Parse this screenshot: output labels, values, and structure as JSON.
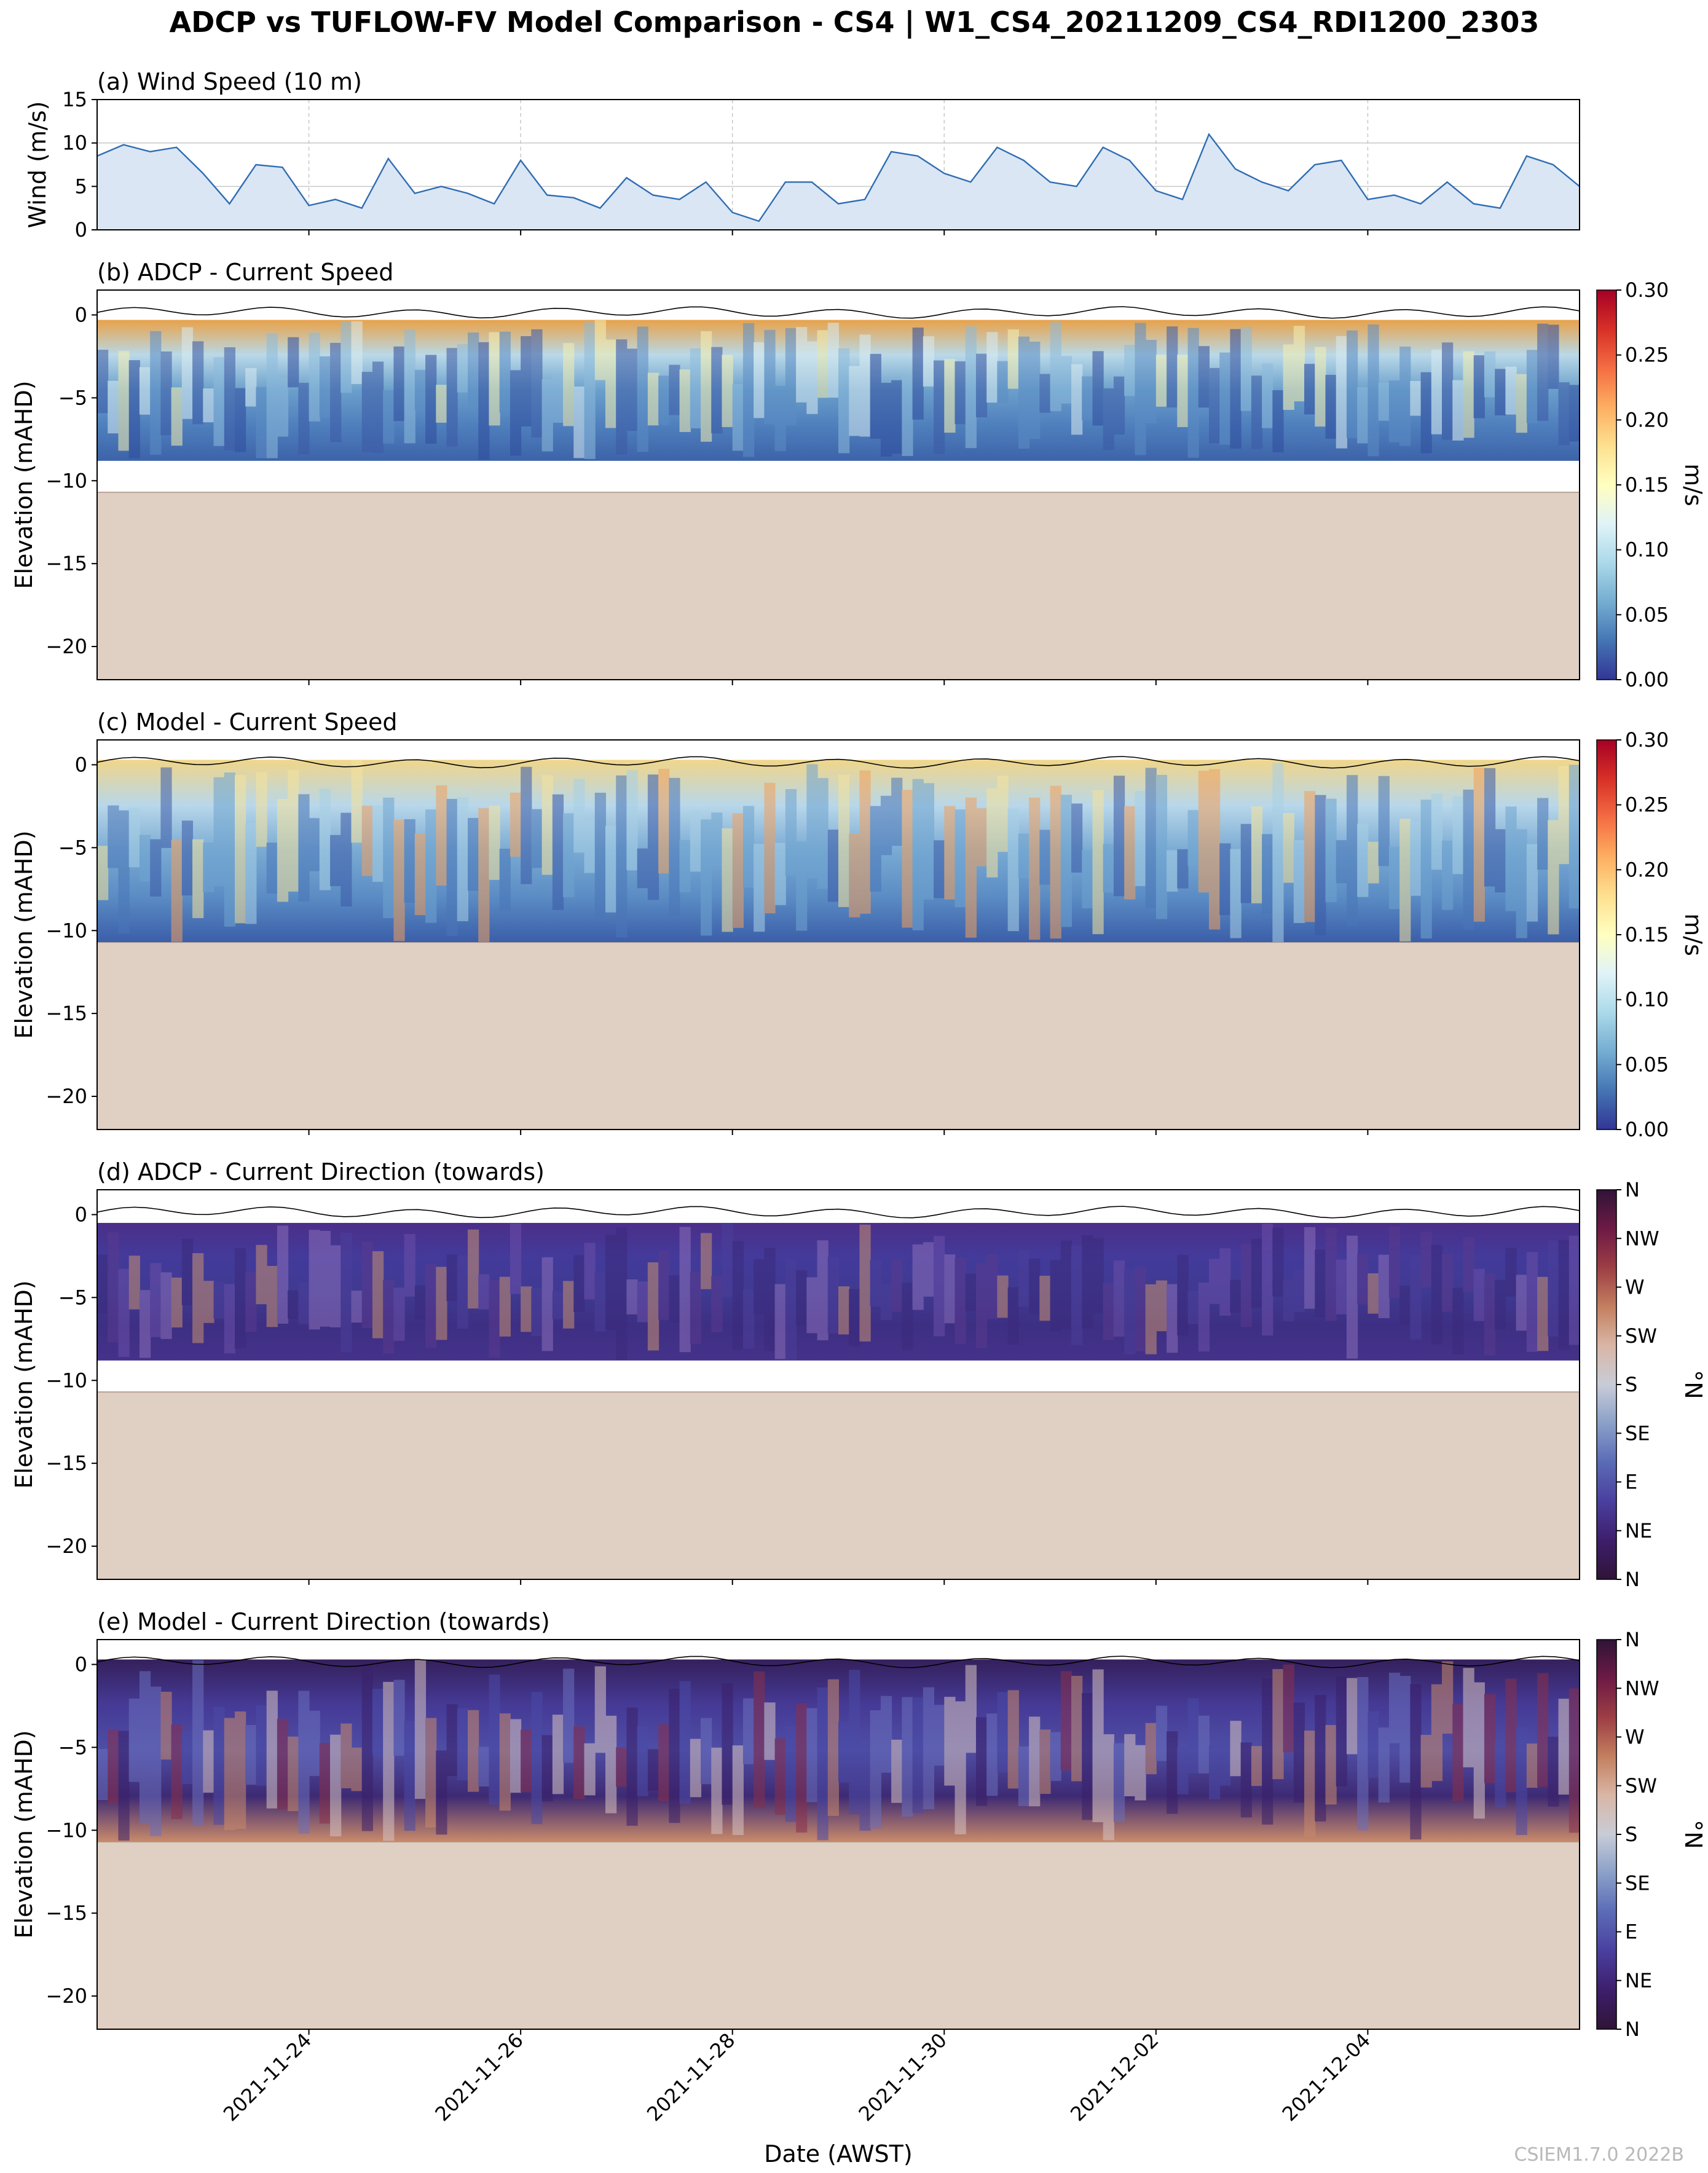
{
  "figure_title": "ADCP vs TUFLOW-FV Model Comparison - CS4 | W1_CS4_20211209_CS4_RDI1200_2303",
  "credit": "CSIEM1.7.0 2022B",
  "colors": {
    "wind_line": "#2f6db3",
    "wind_fill": "#dbe6f4",
    "seabed_fill": "#e0cfc3",
    "seabed_line": "#b8a295",
    "frame": "#000000",
    "grid": "#c8c8c8"
  },
  "chart_data": [
    {
      "id": "a",
      "type": "area",
      "title": "(a) Wind Speed (10 m)",
      "ylabel": "Wind (m/s)",
      "ylim": [
        0,
        15
      ],
      "yticks": [
        "0",
        "5",
        "10",
        "15"
      ],
      "grid": true,
      "x": [
        "2021-11-22 00:00",
        "2021-11-22 06:00",
        "2021-11-22 12:00",
        "2021-11-22 18:00",
        "2021-11-23 00:00",
        "2021-11-23 06:00",
        "2021-11-23 12:00",
        "2021-11-23 18:00",
        "2021-11-24 00:00",
        "2021-11-24 06:00",
        "2021-11-24 12:00",
        "2021-11-24 18:00",
        "2021-11-25 00:00",
        "2021-11-25 06:00",
        "2021-11-25 12:00",
        "2021-11-25 18:00",
        "2021-11-26 00:00",
        "2021-11-26 06:00",
        "2021-11-26 12:00",
        "2021-11-26 18:00",
        "2021-11-27 00:00",
        "2021-11-27 06:00",
        "2021-11-27 12:00",
        "2021-11-27 18:00",
        "2021-11-28 00:00",
        "2021-11-28 06:00",
        "2021-11-28 12:00",
        "2021-11-28 18:00",
        "2021-11-29 00:00",
        "2021-11-29 06:00",
        "2021-11-29 12:00",
        "2021-11-29 18:00",
        "2021-11-30 00:00",
        "2021-11-30 06:00",
        "2021-11-30 12:00",
        "2021-11-30 18:00",
        "2021-12-01 00:00",
        "2021-12-01 06:00",
        "2021-12-01 12:00",
        "2021-12-01 18:00",
        "2021-12-02 00:00",
        "2021-12-02 06:00",
        "2021-12-02 12:00",
        "2021-12-02 18:00",
        "2021-12-03 00:00",
        "2021-12-03 06:00",
        "2021-12-03 12:00",
        "2021-12-03 18:00",
        "2021-12-04 00:00",
        "2021-12-04 06:00",
        "2021-12-04 12:00",
        "2021-12-04 18:00",
        "2021-12-05 00:00",
        "2021-12-05 06:00",
        "2021-12-05 12:00",
        "2021-12-05 18:00",
        "2021-12-06 00:00"
      ],
      "values": [
        8.5,
        9.8,
        9.0,
        9.5,
        6.5,
        3.0,
        7.5,
        7.2,
        2.8,
        3.5,
        2.5,
        8.2,
        4.2,
        5.0,
        4.2,
        3.0,
        8.0,
        4.0,
        3.7,
        2.5,
        6.0,
        4.0,
        3.5,
        5.5,
        2.0,
        1.0,
        5.5,
        5.5,
        3.0,
        3.5,
        9.0,
        8.5,
        6.5,
        5.5,
        9.5,
        8.0,
        5.5,
        5.0,
        9.5,
        8.0,
        4.5,
        3.5,
        11.0,
        7.0,
        5.5,
        4.5,
        7.5,
        8.0,
        3.5,
        4.0,
        3.0,
        5.5,
        3.0,
        2.5,
        8.5,
        7.5,
        5.0
      ]
    },
    {
      "id": "b",
      "type": "heatmap",
      "title": "(b) ADCP - Current Speed",
      "ylabel": "Elevation (mAHD)",
      "ylim": [
        -22,
        1.5
      ],
      "yticks": [
        "0",
        "−5",
        "−10",
        "−15",
        "−20"
      ],
      "data_range_m": [
        -8.8,
        -0.3
      ],
      "bed_level_m": -10.7,
      "colorbar": {
        "label": "m/s",
        "min": 0,
        "max": 0.3,
        "cmap": "RdYlBu_r",
        "ticks": [
          "0.00",
          "0.05",
          "0.10",
          "0.15",
          "0.20",
          "0.25",
          "0.30"
        ]
      }
    },
    {
      "id": "c",
      "type": "heatmap",
      "title": "(c) Model - Current Speed",
      "ylabel": "Elevation (mAHD)",
      "ylim": [
        -22,
        1.5
      ],
      "yticks": [
        "0",
        "−5",
        "−10",
        "−15",
        "−20"
      ],
      "data_range_m": [
        -10.7,
        0.3
      ],
      "bed_level_m": -10.7,
      "colorbar": {
        "label": "m/s",
        "min": 0,
        "max": 0.3,
        "cmap": "RdYlBu_r",
        "ticks": [
          "0.00",
          "0.05",
          "0.10",
          "0.15",
          "0.20",
          "0.25",
          "0.30"
        ]
      }
    },
    {
      "id": "d",
      "type": "heatmap",
      "title": "(d) ADCP - Current Direction (towards)",
      "ylabel": "Elevation (mAHD)",
      "ylim": [
        -22,
        1.5
      ],
      "yticks": [
        "0",
        "−5",
        "−10",
        "−15",
        "−20"
      ],
      "data_range_m": [
        -8.8,
        -0.5
      ],
      "bed_level_m": -10.7,
      "colorbar": {
        "label": "°N",
        "min": 0,
        "max": 360,
        "cmap": "twilight_shifted",
        "ticks": [
          "N",
          "NE",
          "E",
          "SE",
          "S",
          "SW",
          "W",
          "NW",
          "N"
        ]
      }
    },
    {
      "id": "e",
      "type": "heatmap",
      "title": "(e) Model - Current Direction (towards)",
      "ylabel": "Elevation (mAHD)",
      "ylim": [
        -22,
        1.5
      ],
      "yticks": [
        "0",
        "−5",
        "−10",
        "−15",
        "−20"
      ],
      "data_range_m": [
        -10.7,
        0.3
      ],
      "bed_level_m": -10.7,
      "colorbar": {
        "label": "°N",
        "min": 0,
        "max": 360,
        "cmap": "twilight_shifted",
        "ticks": [
          "N",
          "NE",
          "E",
          "SE",
          "S",
          "SW",
          "W",
          "NW",
          "N"
        ]
      }
    }
  ],
  "x_axis": {
    "label": "Date (AWST)",
    "start": "2021-11-22 00:00",
    "end": "2021-12-06 00:00",
    "ticks": [
      "2021-11-24",
      "2021-11-26",
      "2021-11-28",
      "2021-11-30",
      "2021-12-02",
      "2021-12-04"
    ]
  }
}
